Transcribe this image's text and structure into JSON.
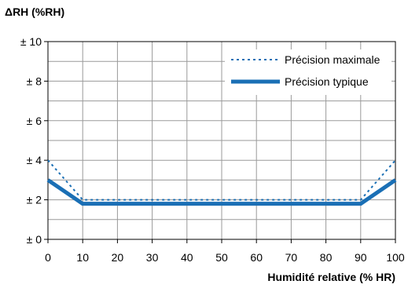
{
  "chart_data": {
    "type": "line",
    "title": "",
    "ylabel": "ΔRH (%RH)",
    "xlabel": "Humidité relative (% HR)",
    "xlim": [
      0,
      100
    ],
    "ylim": [
      0,
      10
    ],
    "x_ticks": [
      "0",
      "10",
      "20",
      "30",
      "40",
      "50",
      "60",
      "70",
      "80",
      "90",
      "100"
    ],
    "y_ticks": [
      "± 0",
      "± 2",
      "± 4",
      "± 6",
      "± 8",
      "± 10"
    ],
    "grid": true,
    "legend_position": "top-right",
    "series": [
      {
        "name": "Précision maximale",
        "style": "dotted",
        "color": "#1a6fb5",
        "x": [
          0,
          10,
          90,
          100
        ],
        "y": [
          4,
          2,
          2,
          4
        ]
      },
      {
        "name": "Précision typique",
        "style": "solid-thick",
        "color": "#1a6fb5",
        "x": [
          0,
          10,
          90,
          100
        ],
        "y": [
          3,
          1.8,
          1.8,
          3
        ]
      }
    ]
  }
}
